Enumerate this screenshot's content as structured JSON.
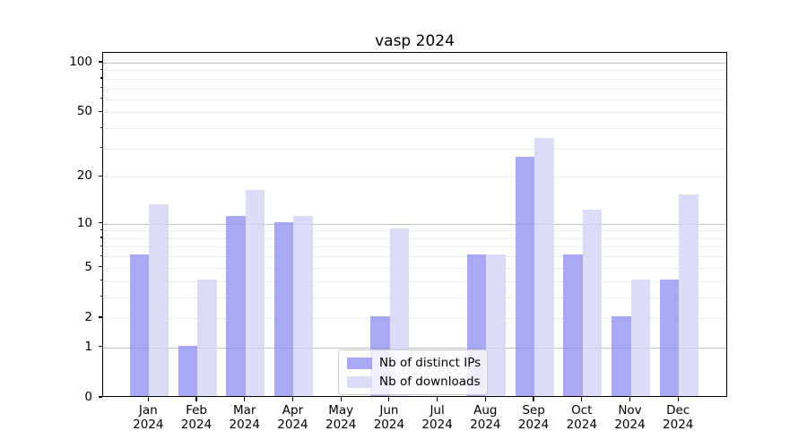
{
  "chart_data": {
    "type": "bar",
    "title": "vasp 2024",
    "xlabel": "",
    "ylabel": "",
    "yscale": "log1p",
    "ylim": [
      0,
      114.6
    ],
    "y_tick_labels": [
      0,
      1,
      2,
      5,
      10,
      20,
      50,
      100
    ],
    "y_major_gridlines": [
      1,
      10,
      100
    ],
    "y_minor_gridlines": [
      2,
      3,
      4,
      5,
      6,
      7,
      8,
      9,
      20,
      30,
      40,
      50,
      60,
      70,
      80,
      90
    ],
    "grid": true,
    "categories": [
      "Jan",
      "Feb",
      "Mar",
      "Apr",
      "May",
      "Jun",
      "Jul",
      "Aug",
      "Sep",
      "Oct",
      "Nov",
      "Dec"
    ],
    "x_tick_year_label": "2024",
    "series": [
      {
        "name": "Nb of distinct IPs",
        "color": "#9292f3",
        "alpha": 0.8,
        "values": [
          6,
          1,
          11,
          10,
          0,
          2,
          0,
          6,
          26,
          6,
          2,
          4
        ]
      },
      {
        "name": "Nb of downloads",
        "color": "#d3d3f6",
        "alpha": 0.8,
        "values": [
          13,
          4,
          16,
          11,
          0,
          9,
          0,
          6,
          34,
          12,
          4,
          15
        ]
      }
    ],
    "legend_position": "lower center"
  },
  "colors": {
    "background": "#ffffff",
    "spine": "#000000",
    "major_grid": "#c0c0c0",
    "minor_grid": "#ededed",
    "text": "#000000"
  }
}
